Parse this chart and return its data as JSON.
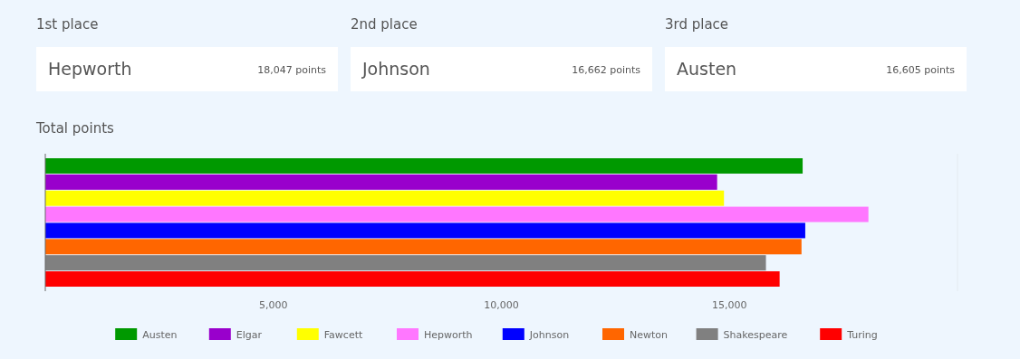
{
  "chart_data": [
    {
      "type": "other",
      "annotations": [
        "1st place",
        "Hepworth",
        "18,047 points",
        "2nd place",
        "Johnson",
        "16,662 points",
        "3rd place",
        "Austen",
        "16,605 points"
      ]
    },
    {
      "type": "bar",
      "orientation": "horizontal",
      "title": "Total points",
      "categories": [
        null
      ],
      "series": [
        {
          "name": "Austen",
          "color": "#009900",
          "values": [
            16605
          ]
        },
        {
          "name": "Elgar",
          "color": "#9900cc",
          "values": [
            14730
          ]
        },
        {
          "name": "Fawcett",
          "color": "#ffff00",
          "values": [
            14880
          ]
        },
        {
          "name": "Hepworth",
          "color": "#ff77ff",
          "values": [
            18047
          ]
        },
        {
          "name": "Johnson",
          "color": "#0000ff",
          "values": [
            16662
          ]
        },
        {
          "name": "Newton",
          "color": "#ff6600",
          "values": [
            16580
          ]
        },
        {
          "name": "Shakespeare",
          "color": "#808080",
          "values": [
            15800
          ]
        },
        {
          "name": "Turing",
          "color": "#ff0000",
          "values": [
            16100
          ]
        }
      ],
      "xlim": [
        0,
        20000
      ],
      "xticks": [
        {
          "value": 5000,
          "label": "5,000"
        },
        {
          "value": 10000,
          "label": "10,000"
        },
        {
          "value": 15000,
          "label": "15,000"
        }
      ],
      "legend": "bottom"
    }
  ]
}
